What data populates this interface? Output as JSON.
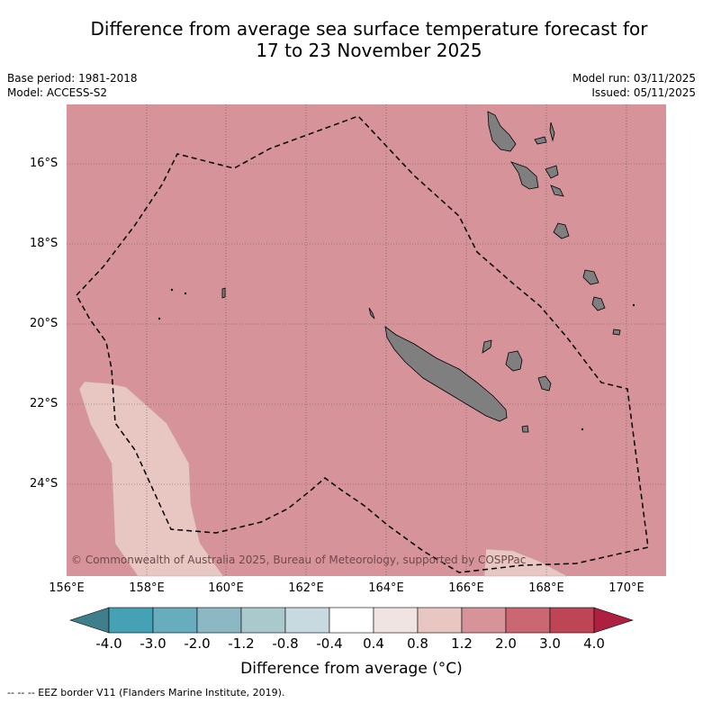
{
  "title": {
    "line1": "Difference from average sea surface temperature forecast for",
    "line2": "17 to 23 November 2025"
  },
  "meta_left": {
    "base_period": "Base period: 1981-2018",
    "model": "Model: ACCESS-S2"
  },
  "meta_right": {
    "model_run": "Model run: 03/11/2025",
    "issued": "Issued: 05/11/2025"
  },
  "map": {
    "lat_labels": [
      "16°S",
      "18°S",
      "20°S",
      "22°S",
      "24°S"
    ],
    "lon_labels": [
      "156°E",
      "158°E",
      "160°E",
      "162°E",
      "164°E",
      "166°E",
      "168°E",
      "170°E"
    ],
    "copyright": "© Commonwealth of Australia 2025, Bureau of Meteorology, supported by COSPPac",
    "colors": {
      "dominant_anomaly": "#d6939a",
      "light_anomaly": "#e8c6c2",
      "land": "#7f7f7f",
      "grid": "#555555"
    }
  },
  "colorbar": {
    "tick_labels": [
      "-4.0",
      "-3.0",
      "-2.0",
      "-1.2",
      "-0.8",
      "-0.4",
      "0.4",
      "0.8",
      "1.2",
      "2.0",
      "3.0",
      "4.0"
    ],
    "colors": [
      "#3f7f8c",
      "#44a2b4",
      "#68adbd",
      "#8cb8c4",
      "#a9c9cd",
      "#c8dadf",
      "#ffffff",
      "#f0e4e3",
      "#e8c6c2",
      "#d6939a",
      "#ca6773",
      "#be4556",
      "#ae2040"
    ],
    "title": "Difference from average (°C)"
  },
  "footer": "-- -- -- EEZ border V11 (Flanders Marine Institute, 2019)."
}
